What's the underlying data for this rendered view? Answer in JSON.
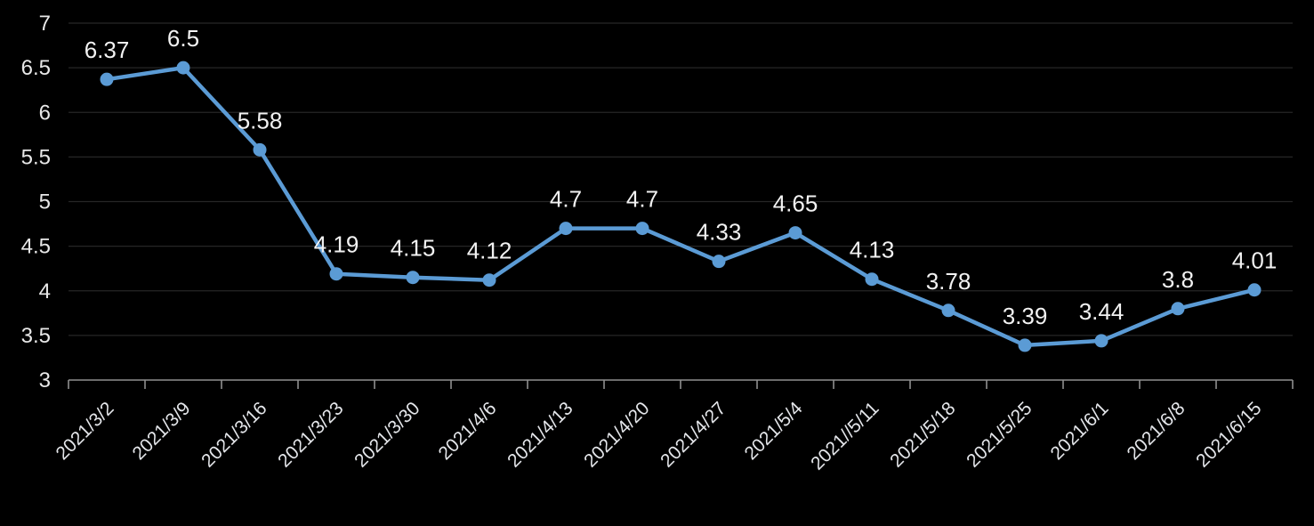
{
  "chart_data": {
    "type": "line",
    "title": "",
    "xlabel": "",
    "ylabel": "",
    "categories": [
      "2021/3/2",
      "2021/3/9",
      "2021/3/16",
      "2021/3/23",
      "2021/3/30",
      "2021/4/6",
      "2021/4/13",
      "2021/4/20",
      "2021/4/27",
      "2021/5/4",
      "2021//5/11",
      "2021/5/18",
      "2021/5/25",
      "2021/6/1",
      "2021/6/8",
      "2021/6/15"
    ],
    "series": [
      {
        "name": "value",
        "values": [
          6.37,
          6.5,
          5.58,
          4.19,
          4.15,
          4.12,
          4.7,
          4.7,
          4.33,
          4.65,
          4.13,
          3.78,
          3.39,
          3.44,
          3.8,
          4.01
        ]
      }
    ],
    "data_labels": [
      "6.37",
      "6.5",
      "5.58",
      "4.19",
      "4.15",
      "4.12",
      "4.7",
      "4.7",
      "4.33",
      "4.65",
      "4.13",
      "3.78",
      "3.39",
      "3.44",
      "3.8",
      "4.01"
    ],
    "y_ticks": [
      3,
      3.5,
      4,
      4.5,
      5,
      5.5,
      6,
      6.5,
      7
    ],
    "y_tick_labels": [
      "3",
      "3.5",
      "4",
      "4.5",
      "5",
      "5.5",
      "6",
      "6.5",
      "7"
    ],
    "ylim": [
      3,
      7
    ],
    "grid": true,
    "legend_position": "none",
    "marker_style": "circle",
    "x_label_rotation_deg": -45,
    "colors": {
      "background": "#000000",
      "line": "#5B9BD5",
      "marker": "#5B9BD5",
      "grid": "#262626",
      "axis": "#8f8f8f",
      "text": "#e8e8e8",
      "data_label_text": "#f2f2f2"
    }
  }
}
